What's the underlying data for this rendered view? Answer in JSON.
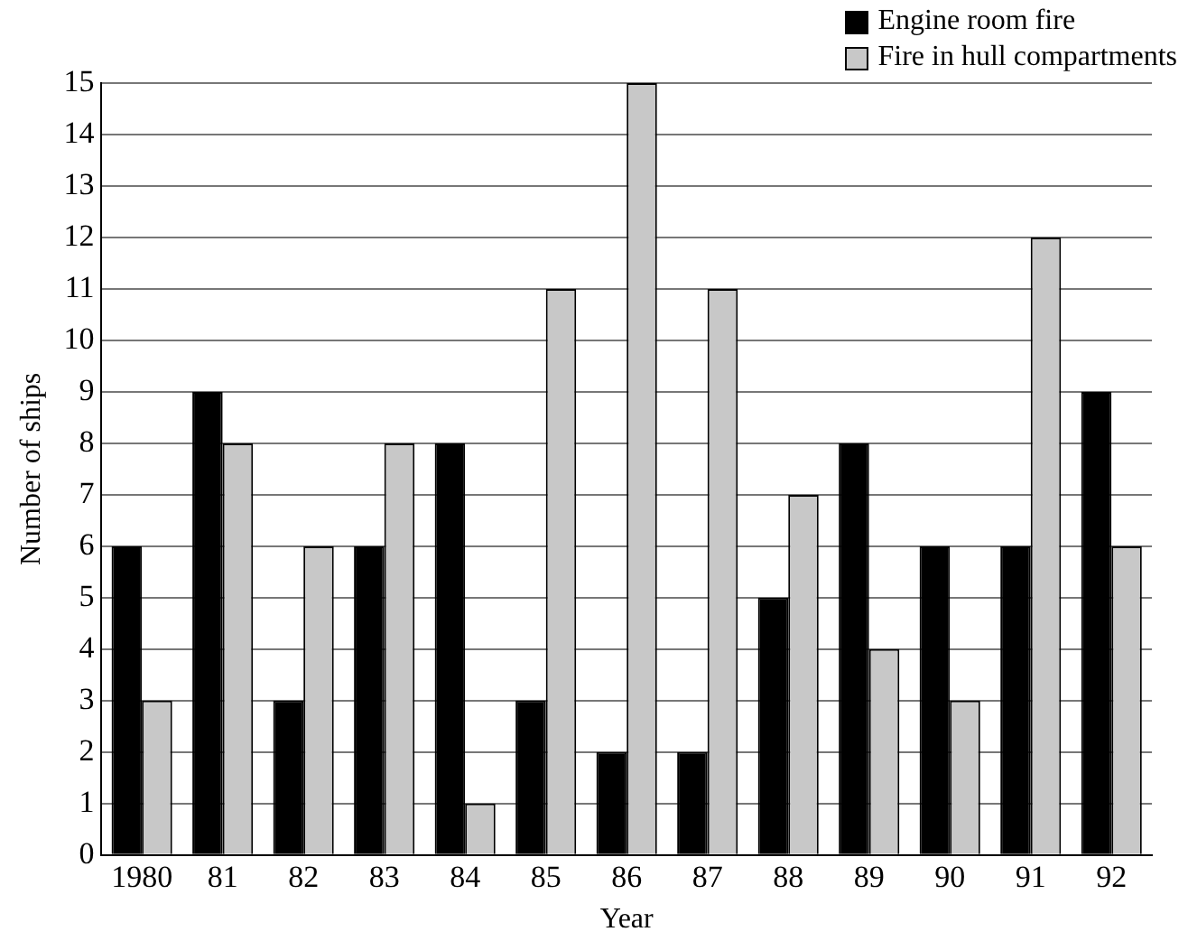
{
  "chart_data": {
    "type": "bar",
    "xlabel": "Year",
    "ylabel": "Number of ships",
    "categories": [
      "1980",
      "81",
      "82",
      "83",
      "84",
      "85",
      "86",
      "87",
      "88",
      "89",
      "90",
      "91",
      "92"
    ],
    "series": [
      {
        "name": "Engine room fire",
        "color": "#000000",
        "values": [
          6,
          9,
          3,
          6,
          8,
          3,
          2,
          2,
          5,
          8,
          6,
          6,
          9
        ]
      },
      {
        "name": "Fire in hull compartments",
        "color": "#c8c8c8",
        "values": [
          3,
          8,
          6,
          8,
          1,
          11,
          15,
          11,
          7,
          4,
          3,
          12,
          6
        ]
      }
    ],
    "ylim": [
      0,
      15
    ],
    "yticks": [
      0,
      1,
      2,
      3,
      4,
      5,
      6,
      7,
      8,
      9,
      10,
      11,
      12,
      13,
      14,
      15
    ],
    "grid": "y",
    "legend": "top right"
  }
}
